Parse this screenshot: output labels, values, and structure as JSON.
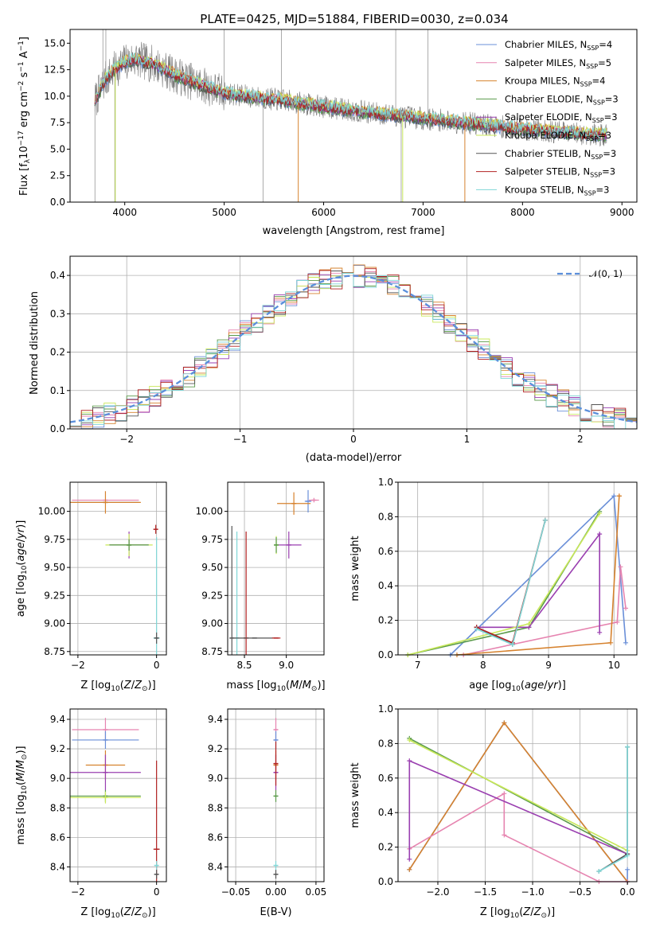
{
  "colors": {
    "chabrier_miles": "#6a8fd8",
    "salpeter_miles": "#e684b0",
    "kroupa_miles": "#d6822e",
    "chabrier_elodie": "#5a9a4a",
    "salpeter_elodie": "#9a3fb0",
    "kroupa_elodie": "#c9e85a",
    "chabrier_stelib": "#555555",
    "salpeter_stelib": "#b22222",
    "kroupa_stelib": "#7fd6d6",
    "normal_curve": "#5b8fdb"
  },
  "chart_data": [
    {
      "id": "spectrum",
      "type": "line",
      "title": "PLATE=0425, MJD=51884, FIBERID=0030, z=0.034",
      "xlabel": "wavelength [Angstrom, rest frame]",
      "ylabel": "Flux [f_λ 10^-17 erg cm^-2 s^-1 A^-1]",
      "xlim": [
        3450,
        9150
      ],
      "ylim": [
        0,
        16.3
      ],
      "xticks": [
        "4000",
        "5000",
        "6000",
        "7000",
        "8000",
        "9000"
      ],
      "yticks": [
        "0.0",
        "2.5",
        "5.0",
        "7.5",
        "10.0",
        "12.5",
        "15.0"
      ],
      "legend_position": "top-right",
      "legend": [
        {
          "name": "Chabrier MILES, N",
          "sub": "SSP",
          "n": "=4"
        },
        {
          "name": "Salpeter MILES, N",
          "sub": "SSP",
          "n": "=5"
        },
        {
          "name": "Kroupa MILES, N",
          "sub": "SSP",
          "n": "=4"
        },
        {
          "name": "Chabrier ELODIE, N",
          "sub": "SSP",
          "n": "=3"
        },
        {
          "name": "Salpeter ELODIE, N",
          "sub": "SSP",
          "n": "=3"
        },
        {
          "name": "Kroupa ELODIE, N",
          "sub": "SSP",
          "n": "=3"
        },
        {
          "name": "Chabrier STELIB, N",
          "sub": "SSP",
          "n": "=3"
        },
        {
          "name": "Salpeter STELIB, N",
          "sub": "SSP",
          "n": "=3"
        },
        {
          "name": "Kroupa STELIB, N",
          "sub": "SSP",
          "n": "=3"
        }
      ],
      "continuum": {
        "x": [
          3700,
          3800,
          3900,
          4000,
          4100,
          4300,
          4500,
          4700,
          5000,
          5300,
          5600,
          6000,
          6500,
          7000,
          7500,
          8000,
          8500,
          8850
        ],
        "y": [
          9.5,
          11.5,
          12.5,
          13.2,
          13.5,
          13.0,
          12.0,
          11.3,
          10.3,
          9.9,
          9.6,
          9.0,
          8.4,
          7.9,
          7.4,
          6.9,
          6.5,
          6.3
        ]
      },
      "data_range": [
        3700,
        8850
      ]
    },
    {
      "id": "residuals",
      "type": "line",
      "xlabel": "(data-model)/error",
      "ylabel": "Normed distribution",
      "xlim": [
        -2.5,
        2.5
      ],
      "ylim": [
        0,
        0.45
      ],
      "xticks": [
        "−2",
        "−1",
        "0",
        "1",
        "2"
      ],
      "yticks": [
        "0.0",
        "0.1",
        "0.2",
        "0.3",
        "0.4"
      ],
      "legend_position": "top-right",
      "legend": [
        "𝒩(0, 1)"
      ],
      "bin_width": 0.1,
      "histogram_bins_from": -2.5,
      "histogram_bins_to": 2.5
    },
    {
      "id": "age-vs-z",
      "type": "scatter",
      "xlabel": "Z [log10(Z/Z⊙)]",
      "ylabel": "age [log10(age/yr)]",
      "xlim": [
        -2.2,
        0.25
      ],
      "ylim": [
        8.72,
        10.26
      ],
      "xticks": [
        "−2",
        "0"
      ],
      "yticks": [
        "8.75",
        "9.00",
        "9.25",
        "9.50",
        "9.75",
        "10.00"
      ],
      "points": [
        {
          "c": "chabrier_miles",
          "x": -1.3,
          "y": 10.08,
          "xe": 0.85,
          "ye": 0.0
        },
        {
          "c": "salpeter_miles",
          "x": -1.3,
          "y": 10.1,
          "xe": 0.85,
          "ye": 0.0
        },
        {
          "c": "kroupa_miles",
          "x": -1.3,
          "y": 10.08,
          "xe": 0.9,
          "ye": 0.1
        },
        {
          "c": "salpeter_elodie",
          "x": -0.7,
          "y": 9.7,
          "xe": 0.5,
          "ye": 0.12
        },
        {
          "c": "kroupa_elodie",
          "x": -0.7,
          "y": 9.7,
          "xe": 0.6,
          "ye": 0.1
        },
        {
          "c": "chabrier_elodie",
          "x": -0.7,
          "y": 9.7,
          "xe": 0.5,
          "ye": 0.05
        },
        {
          "c": "salpeter_stelib",
          "x": -0.02,
          "y": 9.84,
          "xe": 0.0,
          "ye": 0.04
        },
        {
          "c": "kroupa_stelib",
          "x": 0.0,
          "y": 8.87,
          "xe": 0.08,
          "ye": 0.9
        },
        {
          "c": "chabrier_stelib",
          "x": 0.0,
          "y": 8.87,
          "xe": 0.05,
          "ye": 0.05
        }
      ]
    },
    {
      "id": "age-vs-mass",
      "type": "scatter",
      "xlabel": "mass [log10(M/M⊙)]",
      "ylabel": "",
      "xlim": [
        8.3,
        9.45
      ],
      "ylim": [
        8.72,
        10.26
      ],
      "xticks": [
        "8.5",
        "9.0"
      ],
      "yticks": [
        "8.75",
        "9.00",
        "9.25",
        "9.50",
        "9.75",
        "10.00"
      ],
      "points": [
        {
          "c": "chabrier_miles",
          "x": 9.26,
          "y": 10.09,
          "xe": 0.04,
          "ye": 0.1
        },
        {
          "c": "salpeter_miles",
          "x": 9.33,
          "y": 10.1,
          "xe": 0.06,
          "ye": 0.02
        },
        {
          "c": "kroupa_miles",
          "x": 9.09,
          "y": 10.07,
          "xe": 0.2,
          "ye": 0.1
        },
        {
          "c": "salpeter_elodie",
          "x": 9.03,
          "y": 9.7,
          "xe": 0.15,
          "ye": 0.12
        },
        {
          "c": "kroupa_elodie",
          "x": 8.88,
          "y": 9.7,
          "xe": 0.02,
          "ye": 0.08
        },
        {
          "c": "chabrier_elodie",
          "x": 8.88,
          "y": 9.7,
          "xe": 0.02,
          "ye": 0.07
        },
        {
          "c": "salpeter_stelib",
          "x": 8.52,
          "y": 8.87,
          "xe": 0.0,
          "ye": 0.95
        },
        {
          "c": "kroupa_stelib",
          "x": 8.41,
          "y": 8.87,
          "xe": 0.0,
          "ye": 0.95
        },
        {
          "c": "chabrier_stelib",
          "x": 8.35,
          "y": 8.87,
          "xe": 0.0,
          "ye": 1.0
        },
        {
          "c": "chabrier_stelib",
          "x": 8.62,
          "y": 8.87,
          "xe": 0.27,
          "ye": 0.0
        },
        {
          "c": "salpeter_stelib",
          "x": 8.88,
          "y": 8.87,
          "xe": 0.05,
          "ye": 0.0
        }
      ]
    },
    {
      "id": "weight-vs-age",
      "type": "line",
      "xlabel": "age [log10(age/yr)]",
      "ylabel": "mass weight",
      "xlim": [
        6.7,
        10.35
      ],
      "ylim": [
        0,
        1.0
      ],
      "xticks": [
        "7",
        "8",
        "9",
        "10"
      ],
      "yticks": [
        "0.0",
        "0.2",
        "0.4",
        "0.6",
        "0.8",
        "1.0"
      ],
      "series": [
        {
          "c": "chabrier_miles",
          "x": [
            7.5,
            10.0,
            10.18
          ],
          "y": [
            0.0,
            0.92,
            0.07
          ]
        },
        {
          "c": "salpeter_miles",
          "x": [
            7.7,
            10.05,
            10.1,
            10.18
          ],
          "y": [
            0.0,
            0.19,
            0.51,
            0.27
          ]
        },
        {
          "c": "kroupa_miles",
          "x": [
            7.6,
            9.95,
            10.08,
            10.08
          ],
          "y": [
            0.0,
            0.07,
            0.92,
            0.92
          ]
        },
        {
          "c": "chabrier_elodie",
          "x": [
            6.85,
            8.7,
            9.78
          ],
          "y": [
            0.0,
            0.16,
            0.83
          ]
        },
        {
          "c": "salpeter_elodie",
          "x": [
            7.9,
            8.7,
            9.78,
            9.78
          ],
          "y": [
            0.16,
            0.16,
            0.7,
            0.13
          ]
        },
        {
          "c": "kroupa_elodie",
          "x": [
            6.85,
            8.7,
            9.78
          ],
          "y": [
            0.0,
            0.18,
            0.82
          ]
        },
        {
          "c": "chabrier_stelib",
          "x": [
            7.9,
            8.45,
            8.95
          ],
          "y": [
            0.16,
            0.06,
            0.78
          ]
        },
        {
          "c": "salpeter_stelib",
          "x": [
            7.9,
            8.45,
            8.95
          ],
          "y": [
            0.16,
            0.07,
            0.78
          ]
        },
        {
          "c": "kroupa_stelib",
          "x": [
            7.9,
            8.45,
            8.95
          ],
          "y": [
            0.15,
            0.06,
            0.78
          ]
        }
      ]
    },
    {
      "id": "mass-vs-z",
      "type": "scatter",
      "xlabel": "Z [log10(Z/Z⊙)]",
      "ylabel": "mass [log10(M/M⊙)]",
      "xlim": [
        -2.2,
        0.25
      ],
      "ylim": [
        8.3,
        9.47
      ],
      "xticks": [
        "−2",
        "0"
      ],
      "yticks": [
        "8.4",
        "8.6",
        "8.8",
        "9.0",
        "9.2",
        "9.4"
      ],
      "points": [
        {
          "c": "salpeter_miles",
          "x": -1.3,
          "y": 9.33,
          "xe": 0.85,
          "ye": 0.08
        },
        {
          "c": "chabrier_miles",
          "x": -1.3,
          "y": 9.26,
          "xe": 0.85,
          "ye": 0.06
        },
        {
          "c": "kroupa_miles",
          "x": -1.3,
          "y": 9.09,
          "xe": 0.5,
          "ye": 0.1
        },
        {
          "c": "salpeter_elodie",
          "x": -1.3,
          "y": 9.04,
          "xe": 0.9,
          "ye": 0.12
        },
        {
          "c": "chabrier_elodie",
          "x": -1.3,
          "y": 8.88,
          "xe": 0.9,
          "ye": 0.04
        },
        {
          "c": "kroupa_elodie",
          "x": -1.3,
          "y": 8.87,
          "xe": 0.9,
          "ye": 0.04
        },
        {
          "c": "salpeter_stelib",
          "x": 0.0,
          "y": 8.52,
          "xe": 0.08,
          "ye": 0.6
        },
        {
          "c": "kroupa_stelib",
          "x": 0.0,
          "y": 8.41,
          "xe": 0.05,
          "ye": 0.03
        },
        {
          "c": "chabrier_stelib",
          "x": 0.0,
          "y": 8.35,
          "xe": 0.05,
          "ye": 0.03
        }
      ]
    },
    {
      "id": "mass-vs-ebv",
      "type": "scatter",
      "xlabel": "E(B-V)",
      "ylabel": "",
      "xlim": [
        -0.06,
        0.06
      ],
      "ylim": [
        8.3,
        9.47
      ],
      "xticks": [
        "−0.05",
        "0.00",
        "0.05"
      ],
      "yticks": [
        "8.4",
        "8.6",
        "8.8",
        "9.0",
        "9.2",
        "9.4"
      ],
      "points": [
        {
          "c": "salpeter_miles",
          "x": 0.0,
          "y": 9.33,
          "xe": 0.0,
          "ye": 0.08
        },
        {
          "c": "chabrier_miles",
          "x": 0.0,
          "y": 9.26,
          "xe": 0.0,
          "ye": 0.06
        },
        {
          "c": "kroupa_miles",
          "x": 0.0,
          "y": 9.09,
          "xe": 0.0,
          "ye": 0.1
        },
        {
          "c": "salpeter_elodie",
          "x": 0.0,
          "y": 9.04,
          "xe": 0.0,
          "ye": 0.12
        },
        {
          "c": "chabrier_elodie",
          "x": 0.0,
          "y": 8.88,
          "xe": 0.0,
          "ye": 0.04
        },
        {
          "c": "salpeter_stelib",
          "x": 0.0,
          "y": 9.1,
          "xe": 0.0,
          "ye": 0.15
        },
        {
          "c": "kroupa_stelib",
          "x": 0.0,
          "y": 8.41,
          "xe": 0.0,
          "ye": 0.03
        },
        {
          "c": "chabrier_stelib",
          "x": 0.0,
          "y": 8.35,
          "xe": 0.0,
          "ye": 0.03
        }
      ]
    },
    {
      "id": "weight-vs-z",
      "type": "line",
      "xlabel": "Z [log10(Z/Z⊙)]",
      "ylabel": "mass weight",
      "xlim": [
        -2.42,
        0.1
      ],
      "ylim": [
        0,
        1.0
      ],
      "xticks": [
        "−2.0",
        "−1.5",
        "−1.0",
        "−0.5",
        "0.0"
      ],
      "yticks": [
        "0.0",
        "0.2",
        "0.4",
        "0.6",
        "0.8",
        "1.0"
      ],
      "series": [
        {
          "c": "chabrier_miles",
          "x": [
            -2.3,
            -1.3,
            0.0,
            0.0
          ],
          "y": [
            0.07,
            0.92,
            0.0,
            0.07
          ]
        },
        {
          "c": "kroupa_miles",
          "x": [
            -2.3,
            -1.3,
            0.0
          ],
          "y": [
            0.07,
            0.92,
            0.0
          ]
        },
        {
          "c": "salpeter_miles",
          "x": [
            -2.3,
            -1.3,
            -1.3,
            -0.3,
            0.0
          ],
          "y": [
            0.19,
            0.51,
            0.27,
            0.0,
            0.0
          ]
        },
        {
          "c": "chabrier_elodie",
          "x": [
            -2.3,
            0.0
          ],
          "y": [
            0.83,
            0.16
          ]
        },
        {
          "c": "kroupa_elodie",
          "x": [
            -2.3,
            0.0
          ],
          "y": [
            0.82,
            0.18
          ]
        },
        {
          "c": "salpeter_elodie",
          "x": [
            -2.3,
            -2.3,
            0.0
          ],
          "y": [
            0.13,
            0.7,
            0.16
          ]
        },
        {
          "c": "chabrier_stelib",
          "x": [
            -0.3,
            0.0,
            0.0
          ],
          "y": [
            0.06,
            0.16,
            0.78
          ]
        },
        {
          "c": "kroupa_stelib",
          "x": [
            -0.3,
            0.0,
            0.0
          ],
          "y": [
            0.06,
            0.15,
            0.78
          ]
        }
      ]
    }
  ]
}
